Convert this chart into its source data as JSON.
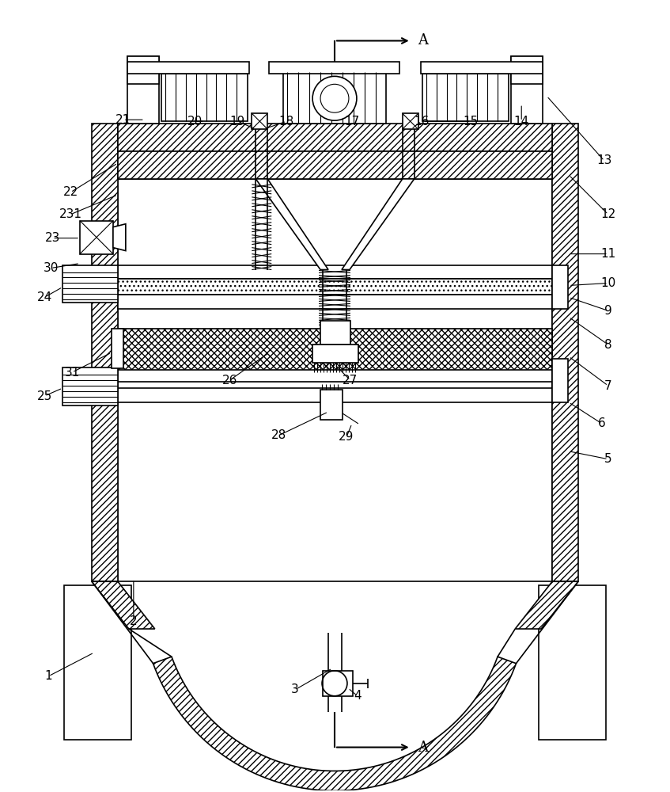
{
  "bg_color": "#ffffff",
  "line_color": "#000000",
  "fig_width": 8.47,
  "fig_height": 10.0,
  "dpi": 100
}
